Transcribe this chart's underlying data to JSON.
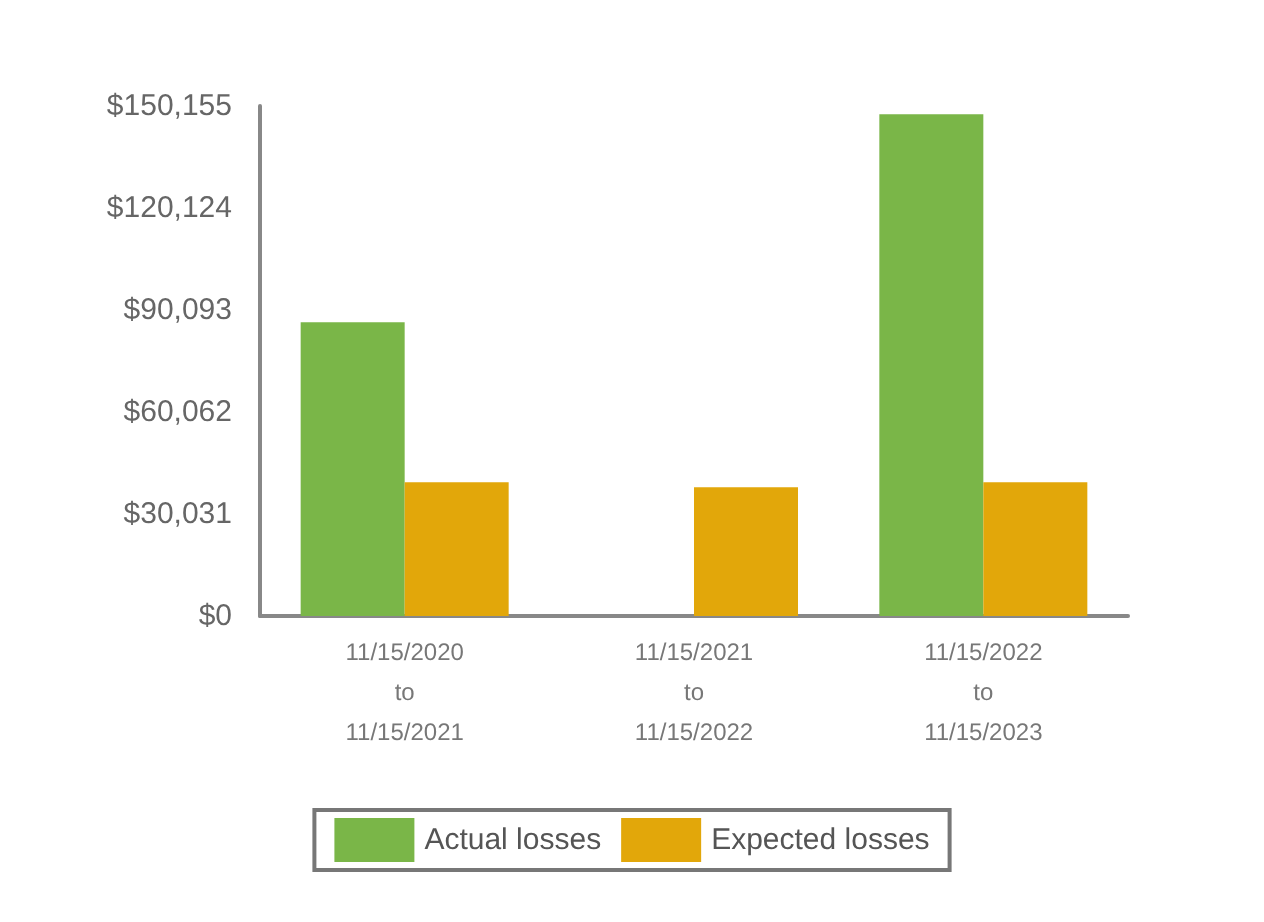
{
  "chart_data": {
    "type": "bar",
    "categories": [
      "11/15/2020\nto\n11/15/2021",
      "11/15/2021\nto\n11/15/2022",
      "11/15/2022\nto\n11/15/2023"
    ],
    "series": [
      {
        "name": "Actual losses",
        "color": "#7ab648",
        "values": [
          86500,
          0,
          147700
        ]
      },
      {
        "name": "Expected losses",
        "color": "#e2a70a",
        "values": [
          39400,
          37900,
          39400
        ]
      }
    ],
    "ylim": [
      0,
      150155
    ],
    "yticks": [
      {
        "value": 0,
        "label": "$0"
      },
      {
        "value": 30031,
        "label": "$30,031"
      },
      {
        "value": 60062,
        "label": "$60,062"
      },
      {
        "value": 90093,
        "label": "$90,093"
      },
      {
        "value": 120124,
        "label": "$120,124"
      },
      {
        "value": 150155,
        "label": "$150,155"
      }
    ],
    "grid": false,
    "legend": "bottom"
  }
}
